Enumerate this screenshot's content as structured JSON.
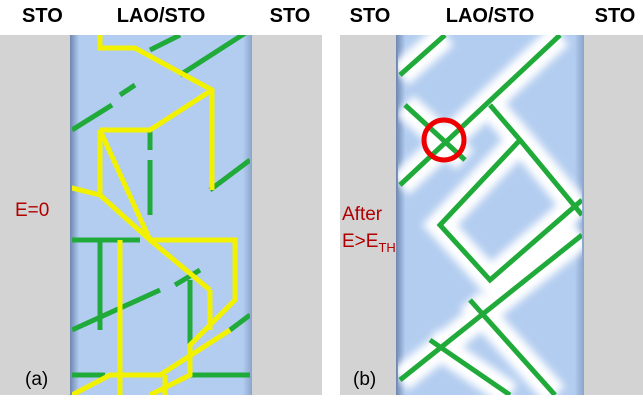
{
  "panel_a": {
    "labels": {
      "left": "STO",
      "center": "LAO/STO",
      "right": "STO"
    },
    "field": "E=0",
    "tag": "(a)"
  },
  "panel_b": {
    "labels": {
      "left": "STO",
      "center": "LAO/STO",
      "right": "STO"
    },
    "field_line1": "After",
    "field_line2": {
      "main": "E>E",
      "sub": "TH"
    },
    "tag": "(b)"
  }
}
